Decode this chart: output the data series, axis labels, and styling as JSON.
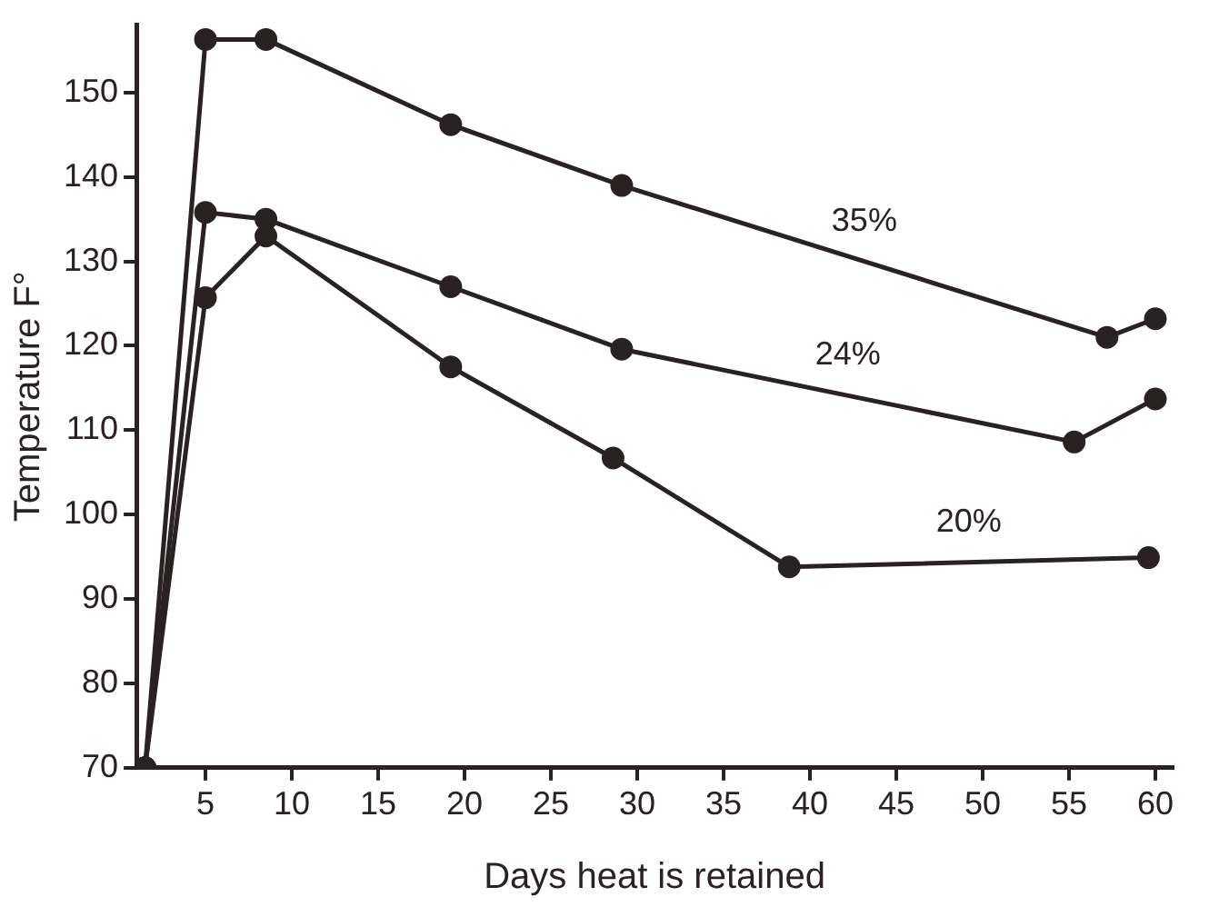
{
  "chart_data": {
    "type": "line",
    "xlabel": "Days heat is retained",
    "ylabel": "Temperature F°",
    "xlim": [
      1,
      61
    ],
    "xticks": [
      5,
      10,
      15,
      20,
      25,
      30,
      35,
      40,
      45,
      50,
      55,
      60
    ],
    "ylim": [
      70,
      158
    ],
    "yticks": [
      70,
      80,
      90,
      100,
      110,
      120,
      130,
      140,
      150
    ],
    "grid": false,
    "legend": false,
    "marker": "circle",
    "line_style": "solid",
    "series": [
      {
        "name": "35%",
        "color": "#2a2222",
        "x": [
          1.5,
          5,
          8.5,
          19.2,
          29.1,
          57.2,
          60
        ],
        "values": [
          70,
          156.3,
          156.3,
          146.2,
          139,
          121,
          123.2
        ]
      },
      {
        "name": "24%",
        "color": "#2a2222",
        "x": [
          1.5,
          5,
          8.5,
          19.2,
          29.1,
          55.3,
          60
        ],
        "values": [
          70,
          135.8,
          135,
          127,
          119.6,
          108.6,
          113.7
        ]
      },
      {
        "name": "20%",
        "color": "#2a2222",
        "x": [
          1.5,
          5,
          8.5,
          19.2,
          28.6,
          38.8,
          59.6
        ],
        "values": [
          70,
          125.7,
          133,
          117.5,
          106.7,
          93.8,
          94.9
        ]
      }
    ]
  }
}
